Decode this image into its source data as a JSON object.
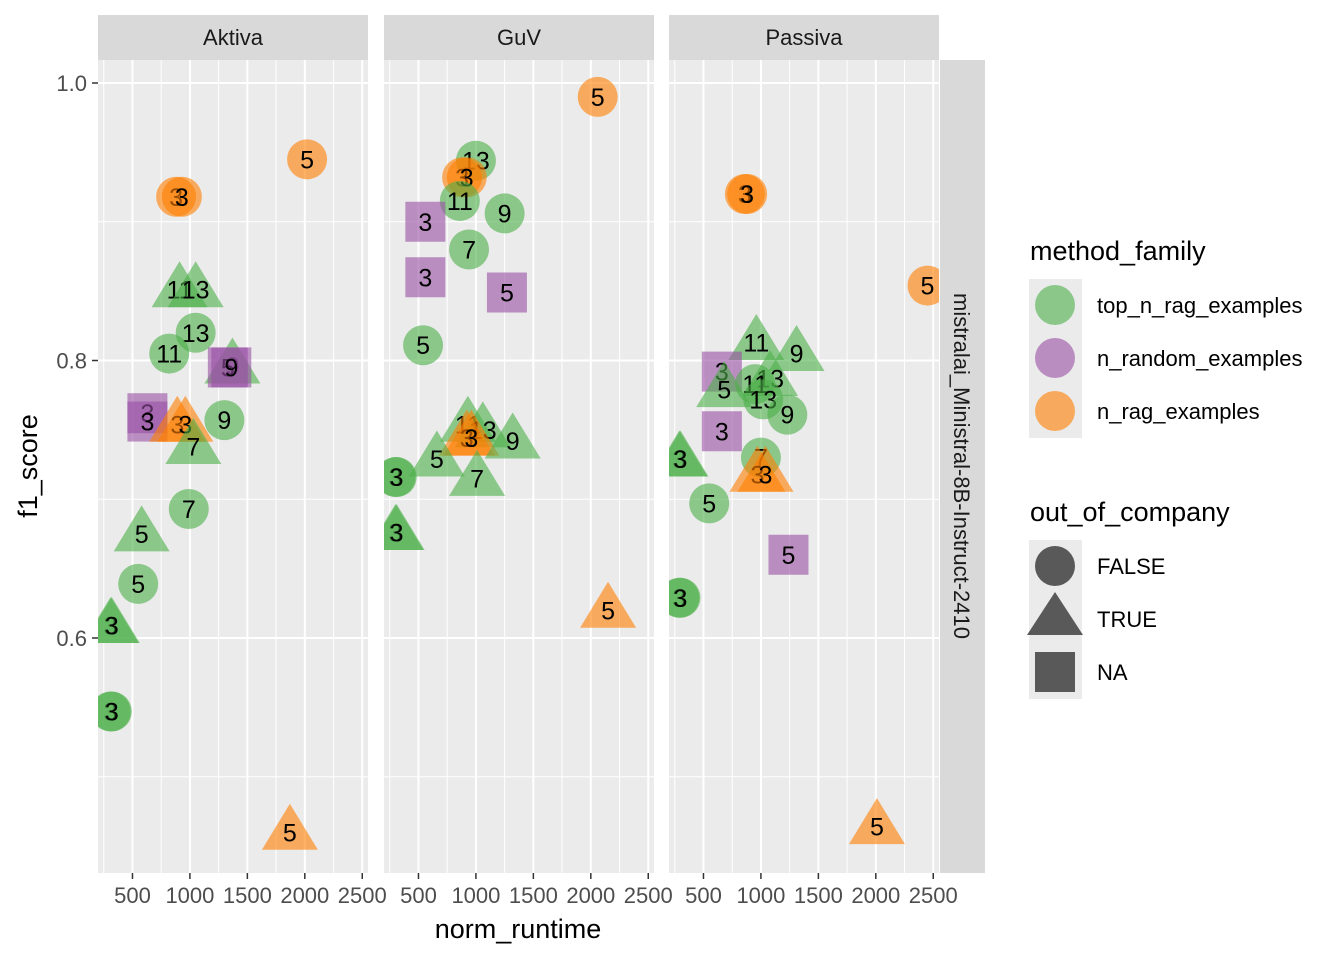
{
  "chart_data": {
    "type": "scatter",
    "xlabel": "norm_runtime",
    "ylabel": "f1_score",
    "row_strip": "mistralai_Ministral-8B-Instruct-2410",
    "xlim": [
      200,
      2550
    ],
    "ylim": [
      0.44,
      1.0
    ],
    "x_ticks": [
      500,
      1000,
      1500,
      2000,
      2500
    ],
    "x_tick_labels": [
      "500",
      "1000",
      "1500",
      "2000",
      "2500"
    ],
    "y_ticks": [
      0.6,
      0.8,
      1.0
    ],
    "y_tick_labels": [
      "0.6",
      "0.8",
      "1.0"
    ],
    "colors": {
      "top_n_rag_examples": "#4daf4a",
      "n_random_examples": "#984ea3",
      "n_rag_examples": "#ff7f00"
    },
    "legend": {
      "color_title": "method_family",
      "color_entries": [
        {
          "key": "top_n_rag_examples",
          "label": "top_n_rag_examples"
        },
        {
          "key": "n_random_examples",
          "label": "n_random_examples"
        },
        {
          "key": "n_rag_examples",
          "label": "n_rag_examples"
        }
      ],
      "shape_title": "out_of_company",
      "shape_entries": [
        {
          "shape": "circle",
          "label": "FALSE"
        },
        {
          "shape": "triangle",
          "label": "TRUE"
        },
        {
          "shape": "square",
          "label": "NA"
        }
      ]
    },
    "panels": [
      {
        "name": "Aktiva",
        "points": [
          {
            "x": 2020,
            "y": 0.945,
            "label": "5",
            "method": "n_rag_examples",
            "ooc": "FALSE"
          },
          {
            "x": 880,
            "y": 0.918,
            "label": "3",
            "method": "n_rag_examples",
            "ooc": "FALSE"
          },
          {
            "x": 930,
            "y": 0.918,
            "label": "3",
            "method": "n_rag_examples",
            "ooc": "FALSE"
          },
          {
            "x": 910,
            "y": 0.851,
            "label": "11",
            "method": "top_n_rag_examples",
            "ooc": "TRUE"
          },
          {
            "x": 1050,
            "y": 0.851,
            "label": "13",
            "method": "top_n_rag_examples",
            "ooc": "TRUE"
          },
          {
            "x": 1050,
            "y": 0.82,
            "label": "13",
            "method": "top_n_rag_examples",
            "ooc": "FALSE"
          },
          {
            "x": 820,
            "y": 0.805,
            "label": "11",
            "method": "top_n_rag_examples",
            "ooc": "FALSE"
          },
          {
            "x": 1370,
            "y": 0.796,
            "label": "9",
            "method": "top_n_rag_examples",
            "ooc": "TRUE"
          },
          {
            "x": 1330,
            "y": 0.795,
            "label": "5",
            "method": "n_random_examples",
            "ooc": "NA"
          },
          {
            "x": 1360,
            "y": 0.795,
            "label": "9",
            "method": "n_random_examples",
            "ooc": "NA"
          },
          {
            "x": 1300,
            "y": 0.757,
            "label": "9",
            "method": "top_n_rag_examples",
            "ooc": "FALSE"
          },
          {
            "x": 630,
            "y": 0.762,
            "label": "3",
            "method": "n_random_examples",
            "ooc": "NA"
          },
          {
            "x": 630,
            "y": 0.756,
            "label": "3",
            "method": "n_random_examples",
            "ooc": "NA"
          },
          {
            "x": 890,
            "y": 0.754,
            "label": "3",
            "method": "n_rag_examples",
            "ooc": "TRUE"
          },
          {
            "x": 960,
            "y": 0.754,
            "label": "3",
            "method": "n_rag_examples",
            "ooc": "TRUE"
          },
          {
            "x": 1030,
            "y": 0.738,
            "label": "7",
            "method": "top_n_rag_examples",
            "ooc": "TRUE"
          },
          {
            "x": 990,
            "y": 0.693,
            "label": "7",
            "method": "top_n_rag_examples",
            "ooc": "FALSE"
          },
          {
            "x": 580,
            "y": 0.675,
            "label": "5",
            "method": "top_n_rag_examples",
            "ooc": "TRUE"
          },
          {
            "x": 550,
            "y": 0.639,
            "label": "5",
            "method": "top_n_rag_examples",
            "ooc": "FALSE"
          },
          {
            "x": 310,
            "y": 0.609,
            "label": "3",
            "method": "top_n_rag_examples",
            "ooc": "TRUE"
          },
          {
            "x": 320,
            "y": 0.609,
            "label": "3",
            "method": "top_n_rag_examples",
            "ooc": "TRUE"
          },
          {
            "x": 310,
            "y": 0.547,
            "label": "3",
            "method": "top_n_rag_examples",
            "ooc": "FALSE"
          },
          {
            "x": 320,
            "y": 0.547,
            "label": "3",
            "method": "top_n_rag_examples",
            "ooc": "FALSE"
          },
          {
            "x": 1870,
            "y": 0.46,
            "label": "5",
            "method": "n_rag_examples",
            "ooc": "TRUE"
          }
        ]
      },
      {
        "name": "GuV",
        "points": [
          {
            "x": 2060,
            "y": 0.99,
            "label": "5",
            "method": "n_rag_examples",
            "ooc": "FALSE"
          },
          {
            "x": 1000,
            "y": 0.944,
            "label": "13",
            "method": "top_n_rag_examples",
            "ooc": "FALSE"
          },
          {
            "x": 880,
            "y": 0.932,
            "label": "3",
            "method": "n_rag_examples",
            "ooc": "FALSE"
          },
          {
            "x": 920,
            "y": 0.932,
            "label": "3",
            "method": "n_rag_examples",
            "ooc": "FALSE"
          },
          {
            "x": 860,
            "y": 0.915,
            "label": "11",
            "method": "top_n_rag_examples",
            "ooc": "FALSE"
          },
          {
            "x": 1250,
            "y": 0.906,
            "label": "9",
            "method": "top_n_rag_examples",
            "ooc": "FALSE"
          },
          {
            "x": 560,
            "y": 0.9,
            "label": "3",
            "method": "n_random_examples",
            "ooc": "NA"
          },
          {
            "x": 940,
            "y": 0.88,
            "label": "7",
            "method": "top_n_rag_examples",
            "ooc": "FALSE"
          },
          {
            "x": 560,
            "y": 0.86,
            "label": "3",
            "method": "n_random_examples",
            "ooc": "NA"
          },
          {
            "x": 1270,
            "y": 0.849,
            "label": "5",
            "method": "n_random_examples",
            "ooc": "NA"
          },
          {
            "x": 540,
            "y": 0.811,
            "label": "5",
            "method": "top_n_rag_examples",
            "ooc": "FALSE"
          },
          {
            "x": 930,
            "y": 0.754,
            "label": "11",
            "method": "top_n_rag_examples",
            "ooc": "TRUE"
          },
          {
            "x": 1060,
            "y": 0.75,
            "label": "13",
            "method": "top_n_rag_examples",
            "ooc": "TRUE"
          },
          {
            "x": 920,
            "y": 0.744,
            "label": "3",
            "method": "n_rag_examples",
            "ooc": "TRUE"
          },
          {
            "x": 960,
            "y": 0.744,
            "label": "3",
            "method": "n_rag_examples",
            "ooc": "TRUE"
          },
          {
            "x": 1320,
            "y": 0.742,
            "label": "9",
            "method": "top_n_rag_examples",
            "ooc": "TRUE"
          },
          {
            "x": 660,
            "y": 0.729,
            "label": "5",
            "method": "top_n_rag_examples",
            "ooc": "TRUE"
          },
          {
            "x": 300,
            "y": 0.716,
            "label": "3",
            "method": "top_n_rag_examples",
            "ooc": "FALSE"
          },
          {
            "x": 310,
            "y": 0.716,
            "label": "3",
            "method": "top_n_rag_examples",
            "ooc": "FALSE"
          },
          {
            "x": 1010,
            "y": 0.715,
            "label": "7",
            "method": "top_n_rag_examples",
            "ooc": "TRUE"
          },
          {
            "x": 300,
            "y": 0.676,
            "label": "3",
            "method": "top_n_rag_examples",
            "ooc": "TRUE"
          },
          {
            "x": 310,
            "y": 0.676,
            "label": "3",
            "method": "top_n_rag_examples",
            "ooc": "TRUE"
          },
          {
            "x": 2150,
            "y": 0.62,
            "label": "5",
            "method": "n_rag_examples",
            "ooc": "TRUE"
          }
        ]
      },
      {
        "name": "Passiva",
        "points": [
          {
            "x": 2450,
            "y": 0.854,
            "label": "5",
            "method": "n_rag_examples",
            "ooc": "FALSE"
          },
          {
            "x": 860,
            "y": 0.92,
            "label": "3",
            "method": "n_rag_examples",
            "ooc": "FALSE"
          },
          {
            "x": 880,
            "y": 0.92,
            "label": "3",
            "method": "n_rag_examples",
            "ooc": "FALSE"
          },
          {
            "x": 960,
            "y": 0.813,
            "label": "11",
            "method": "top_n_rag_examples",
            "ooc": "TRUE"
          },
          {
            "x": 1310,
            "y": 0.805,
            "label": "9",
            "method": "top_n_rag_examples",
            "ooc": "TRUE"
          },
          {
            "x": 660,
            "y": 0.792,
            "label": "3",
            "method": "n_random_examples",
            "ooc": "NA"
          },
          {
            "x": 1080,
            "y": 0.787,
            "label": "13",
            "method": "top_n_rag_examples",
            "ooc": "TRUE"
          },
          {
            "x": 950,
            "y": 0.783,
            "label": "11",
            "method": "top_n_rag_examples",
            "ooc": "FALSE"
          },
          {
            "x": 680,
            "y": 0.779,
            "label": "5",
            "method": "top_n_rag_examples",
            "ooc": "TRUE"
          },
          {
            "x": 1020,
            "y": 0.772,
            "label": "13",
            "method": "top_n_rag_examples",
            "ooc": "FALSE"
          },
          {
            "x": 1230,
            "y": 0.761,
            "label": "9",
            "method": "top_n_rag_examples",
            "ooc": "FALSE"
          },
          {
            "x": 660,
            "y": 0.749,
            "label": "3",
            "method": "n_random_examples",
            "ooc": "NA"
          },
          {
            "x": 1000,
            "y": 0.73,
            "label": "7",
            "method": "top_n_rag_examples",
            "ooc": "FALSE"
          },
          {
            "x": 290,
            "y": 0.729,
            "label": "3",
            "method": "top_n_rag_examples",
            "ooc": "TRUE"
          },
          {
            "x": 300,
            "y": 0.729,
            "label": "3",
            "method": "top_n_rag_examples",
            "ooc": "TRUE"
          },
          {
            "x": 970,
            "y": 0.718,
            "label": "3",
            "method": "n_rag_examples",
            "ooc": "TRUE"
          },
          {
            "x": 1040,
            "y": 0.718,
            "label": "3",
            "method": "n_rag_examples",
            "ooc": "TRUE"
          },
          {
            "x": 550,
            "y": 0.697,
            "label": "5",
            "method": "top_n_rag_examples",
            "ooc": "FALSE"
          },
          {
            "x": 1240,
            "y": 0.66,
            "label": "5",
            "method": "n_random_examples",
            "ooc": "NA"
          },
          {
            "x": 290,
            "y": 0.629,
            "label": "3",
            "method": "top_n_rag_examples",
            "ooc": "FALSE"
          },
          {
            "x": 300,
            "y": 0.629,
            "label": "3",
            "method": "top_n_rag_examples",
            "ooc": "FALSE"
          },
          {
            "x": 2010,
            "y": 0.464,
            "label": "5",
            "method": "n_rag_examples",
            "ooc": "TRUE"
          }
        ]
      }
    ]
  }
}
